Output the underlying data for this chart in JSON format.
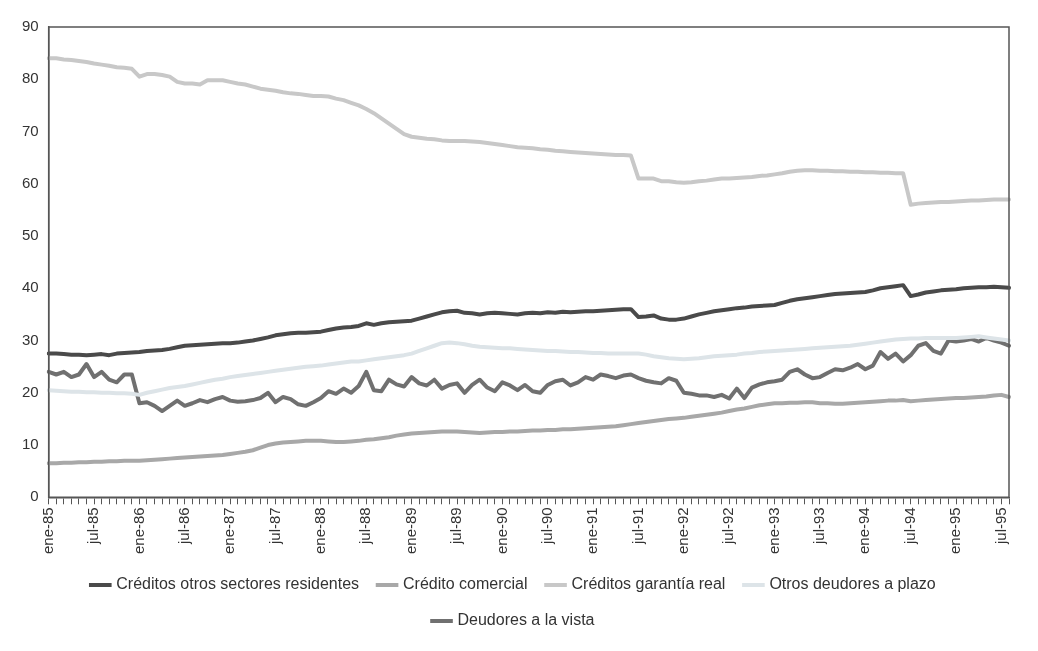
{
  "chart_data": {
    "type": "line",
    "categories": [
      "ene-85",
      null,
      null,
      null,
      null,
      null,
      "jul-85",
      null,
      null,
      null,
      null,
      null,
      "ene-86",
      null,
      null,
      null,
      null,
      null,
      "jul-86",
      null,
      null,
      null,
      null,
      null,
      "ene-87",
      null,
      null,
      null,
      null,
      null,
      "jul-87",
      null,
      null,
      null,
      null,
      null,
      "ene-88",
      null,
      null,
      null,
      null,
      null,
      "jul-88",
      null,
      null,
      null,
      null,
      null,
      "ene-89",
      null,
      null,
      null,
      null,
      null,
      "jul-89",
      null,
      null,
      null,
      null,
      null,
      "ene-90",
      null,
      null,
      null,
      null,
      null,
      "jul-90",
      null,
      null,
      null,
      null,
      null,
      "ene-91",
      null,
      null,
      null,
      null,
      null,
      "jul-91",
      null,
      null,
      null,
      null,
      null,
      "ene-92",
      null,
      null,
      null,
      null,
      null,
      "jul-92",
      null,
      null,
      null,
      null,
      null,
      "ene-93",
      null,
      null,
      null,
      null,
      null,
      "jul-93",
      null,
      null,
      null,
      null,
      null,
      "ene-94",
      null,
      null,
      null,
      null,
      null,
      "jul-94",
      null,
      null,
      null,
      null,
      null,
      "ene-95",
      null,
      null,
      null,
      null,
      null,
      "jul-95",
      null
    ],
    "series": [
      {
        "name": "Créditos otros sectores residentes",
        "color": "#4a4a4a",
        "values": [
          27.5,
          27.5,
          27.4,
          27.3,
          27.3,
          27.2,
          27.3,
          27.4,
          27.2,
          27.5,
          27.6,
          27.7,
          27.8,
          28,
          28.1,
          28.2,
          28.4,
          28.7,
          29,
          29.1,
          29.2,
          29.3,
          29.4,
          29.5,
          29.5,
          29.6,
          29.8,
          30,
          30.3,
          30.6,
          31,
          31.2,
          31.4,
          31.5,
          31.5,
          31.6,
          31.7,
          32,
          32.3,
          32.5,
          32.6,
          32.8,
          33.3,
          33,
          33.3,
          33.5,
          33.6,
          33.7,
          33.8,
          34.2,
          34.6,
          35,
          35.4,
          35.6,
          35.7,
          35.3,
          35.2,
          35,
          35.2,
          35.3,
          35.2,
          35.1,
          35,
          35.2,
          35.3,
          35.2,
          35.4,
          35.3,
          35.5,
          35.4,
          35.5,
          35.6,
          35.6,
          35.7,
          35.8,
          35.9,
          36,
          36,
          34.5,
          34.6,
          34.8,
          34.2,
          34,
          34,
          34.2,
          34.6,
          35,
          35.3,
          35.6,
          35.8,
          36,
          36.2,
          36.3,
          36.5,
          36.6,
          36.7,
          36.8,
          37.2,
          37.6,
          37.9,
          38.1,
          38.3,
          38.5,
          38.7,
          38.9,
          39,
          39.1,
          39.2,
          39.3,
          39.6,
          40,
          40.2,
          40.4,
          40.6,
          38.5,
          38.8,
          39.2,
          39.4,
          39.6,
          39.7,
          39.8,
          40,
          40.1,
          40.2,
          40.2,
          40.3,
          40.2,
          40.1
        ]
      },
      {
        "name": "Crédito comercial",
        "color": "#a8a8a8",
        "values": [
          6.5,
          6.5,
          6.6,
          6.6,
          6.7,
          6.7,
          6.8,
          6.8,
          6.9,
          6.9,
          7,
          7,
          7,
          7.1,
          7.2,
          7.3,
          7.4,
          7.5,
          7.6,
          7.7,
          7.8,
          7.9,
          8,
          8.1,
          8.3,
          8.5,
          8.7,
          9,
          9.5,
          10,
          10.3,
          10.5,
          10.6,
          10.7,
          10.8,
          10.8,
          10.8,
          10.7,
          10.6,
          10.6,
          10.7,
          10.8,
          11,
          11.1,
          11.3,
          11.5,
          11.8,
          12,
          12.2,
          12.3,
          12.4,
          12.5,
          12.6,
          12.6,
          12.6,
          12.5,
          12.4,
          12.3,
          12.4,
          12.5,
          12.5,
          12.6,
          12.6,
          12.7,
          12.8,
          12.8,
          12.9,
          12.9,
          13,
          13,
          13.1,
          13.2,
          13.3,
          13.4,
          13.5,
          13.6,
          13.8,
          14,
          14.2,
          14.4,
          14.6,
          14.8,
          15,
          15.1,
          15.2,
          15.4,
          15.6,
          15.8,
          16,
          16.2,
          16.5,
          16.8,
          17,
          17.3,
          17.6,
          17.8,
          18,
          18,
          18.1,
          18.1,
          18.2,
          18.2,
          18,
          18,
          17.9,
          17.9,
          18,
          18.1,
          18.2,
          18.3,
          18.4,
          18.5,
          18.5,
          18.6,
          18.4,
          18.5,
          18.6,
          18.7,
          18.8,
          18.9,
          19,
          19,
          19.1,
          19.2,
          19.3,
          19.5,
          19.6,
          19.2
        ]
      },
      {
        "name": "Créditos garantía real",
        "color": "#c8c8c8",
        "values": [
          84,
          84,
          83.8,
          83.7,
          83.5,
          83.3,
          83,
          82.8,
          82.6,
          82.3,
          82.2,
          82,
          80.5,
          81,
          81,
          80.8,
          80.5,
          79.5,
          79.2,
          79.2,
          79,
          79.8,
          79.8,
          79.8,
          79.5,
          79.2,
          79,
          78.6,
          78.2,
          78,
          77.8,
          77.5,
          77.3,
          77.2,
          77,
          76.8,
          76.8,
          76.7,
          76.3,
          76,
          75.5,
          75,
          74.3,
          73.5,
          72.5,
          71.5,
          70.5,
          69.5,
          69,
          68.8,
          68.6,
          68.5,
          68.3,
          68.2,
          68.2,
          68.2,
          68.1,
          68,
          67.8,
          67.6,
          67.4,
          67.2,
          67,
          66.9,
          66.8,
          66.6,
          66.5,
          66.3,
          66.2,
          66.1,
          66,
          65.9,
          65.8,
          65.7,
          65.6,
          65.5,
          65.5,
          65.4,
          61,
          61,
          61,
          60.5,
          60.5,
          60.3,
          60.2,
          60.3,
          60.5,
          60.6,
          60.8,
          61,
          61,
          61.1,
          61.2,
          61.3,
          61.5,
          61.6,
          61.8,
          62,
          62.3,
          62.5,
          62.6,
          62.6,
          62.5,
          62.5,
          62.4,
          62.4,
          62.3,
          62.3,
          62.2,
          62.2,
          62.1,
          62.1,
          62,
          62,
          56,
          56.2,
          56.3,
          56.4,
          56.5,
          56.5,
          56.6,
          56.7,
          56.8,
          56.8,
          56.9,
          57,
          57,
          57
        ]
      },
      {
        "name": "Otros deudores a plazo",
        "color": "#dde4e8",
        "values": [
          20.5,
          20.4,
          20.3,
          20.2,
          20.2,
          20.1,
          20.1,
          20,
          20,
          19.9,
          19.9,
          19.8,
          19.6,
          20,
          20.3,
          20.6,
          20.9,
          21.1,
          21.3,
          21.6,
          21.9,
          22.2,
          22.5,
          22.7,
          23,
          23.2,
          23.4,
          23.6,
          23.8,
          24,
          24.2,
          24.4,
          24.6,
          24.8,
          25,
          25.1,
          25.2,
          25.4,
          25.6,
          25.8,
          26,
          26,
          26.2,
          26.4,
          26.6,
          26.8,
          27,
          27.2,
          27.5,
          28,
          28.5,
          29,
          29.5,
          29.6,
          29.5,
          29.3,
          29,
          28.8,
          28.7,
          28.6,
          28.5,
          28.5,
          28.4,
          28.3,
          28.2,
          28.1,
          28,
          28,
          27.9,
          27.8,
          27.8,
          27.7,
          27.6,
          27.6,
          27.5,
          27.5,
          27.5,
          27.5,
          27.5,
          27.3,
          27,
          26.8,
          26.6,
          26.5,
          26.4,
          26.5,
          26.6,
          26.8,
          27,
          27.1,
          27.2,
          27.3,
          27.5,
          27.6,
          27.8,
          27.9,
          28,
          28.1,
          28.2,
          28.3,
          28.4,
          28.5,
          28.6,
          28.7,
          28.8,
          28.9,
          29,
          29.2,
          29.4,
          29.6,
          29.8,
          30,
          30.2,
          30.3,
          30.4,
          30.4,
          30.5,
          30.5,
          30.5,
          30.5,
          30.5,
          30.6,
          30.7,
          30.8,
          30.6,
          30.4,
          30.2,
          30
        ]
      },
      {
        "name": "Deudores a la vista",
        "color": "#707070",
        "values": [
          24,
          23.5,
          24,
          23,
          23.5,
          25.5,
          23,
          24,
          22.5,
          22,
          23.5,
          23.5,
          18,
          18.2,
          17.5,
          16.5,
          17.5,
          18.5,
          17.5,
          18,
          18.6,
          18.2,
          18.8,
          19.2,
          18.5,
          18.3,
          18.4,
          18.6,
          19,
          20,
          18.2,
          19.2,
          18.8,
          17.8,
          17.5,
          18.2,
          19,
          20.3,
          19.8,
          20.8,
          20,
          21.3,
          24,
          20.5,
          20.3,
          22.5,
          21.6,
          21.2,
          23,
          21.8,
          21.4,
          22.5,
          20.8,
          21.5,
          21.8,
          20,
          21.5,
          22.5,
          21,
          20.3,
          22,
          21.4,
          20.5,
          21.5,
          20.3,
          20,
          21.5,
          22.2,
          22.5,
          21.4,
          22,
          23,
          22.5,
          23.5,
          23.2,
          22.8,
          23.3,
          23.5,
          22.8,
          22.3,
          22,
          21.8,
          22.8,
          22.3,
          20,
          19.8,
          19.5,
          19.5,
          19.2,
          19.6,
          18.9,
          20.8,
          19,
          21,
          21.6,
          22,
          22.2,
          22.5,
          24,
          24.5,
          23.5,
          22.8,
          23,
          23.8,
          24.5,
          24.3,
          24.8,
          25.5,
          24.5,
          25.2,
          27.8,
          26.5,
          27.5,
          26,
          27.2,
          29,
          29.5,
          28,
          27.5,
          30,
          29.8,
          30,
          30.3,
          29.8,
          30.5,
          30,
          29.6,
          29
        ]
      }
    ],
    "ylim": [
      0,
      90
    ],
    "yticks": [
      0,
      10,
      20,
      30,
      40,
      50,
      60,
      70,
      80,
      90
    ],
    "grid": false,
    "legend": "bottom",
    "marker": "none",
    "line_style": "solid"
  }
}
